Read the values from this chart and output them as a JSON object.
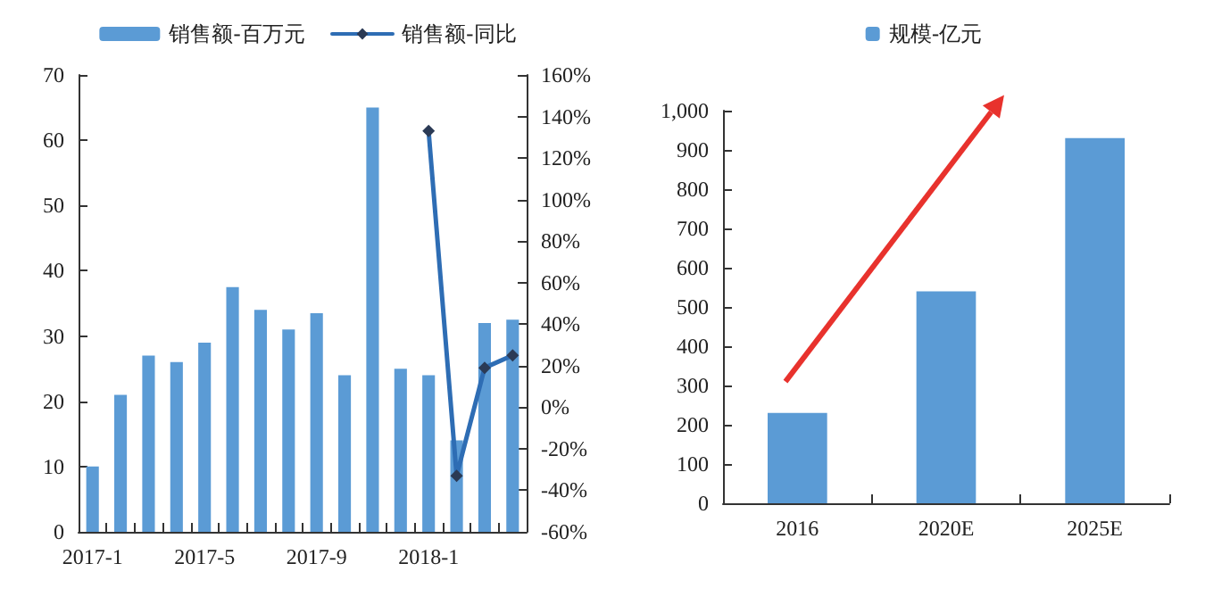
{
  "chart_data": [
    {
      "type": "bar",
      "categories": [
        "2017-1",
        null,
        null,
        null,
        "2017-5",
        null,
        null,
        null,
        "2017-9",
        null,
        null,
        null,
        "2018-1",
        null,
        null,
        null
      ],
      "series": [
        {
          "name": "销售额-百万元",
          "color": "#5b9bd5",
          "values": [
            10,
            21,
            27,
            26,
            29,
            37.5,
            34,
            31,
            33.5,
            24,
            65,
            25,
            24,
            14,
            32,
            32.5
          ]
        },
        {
          "name": "销售额-同比",
          "type": "line",
          "axis": "y2",
          "color": "#2e6db4",
          "values": [
            null,
            null,
            null,
            null,
            null,
            null,
            null,
            null,
            null,
            null,
            null,
            null,
            133,
            -33,
            19,
            25
          ]
        }
      ],
      "marker": "diamond",
      "legend": "top",
      "ylim": [
        0,
        70
      ],
      "yticks": [
        0,
        10,
        20,
        30,
        40,
        50,
        60,
        70
      ],
      "y2lim": [
        -60,
        160
      ],
      "y2ticks": [
        {
          "value": -60,
          "label": "-60%"
        },
        {
          "value": -40,
          "label": "-40%"
        },
        {
          "value": -20,
          "label": "-20%"
        },
        {
          "value": 0,
          "label": "0%"
        },
        {
          "value": 20,
          "label": "20%"
        },
        {
          "value": 40,
          "label": "40%"
        },
        {
          "value": 60,
          "label": "60%"
        },
        {
          "value": 80,
          "label": "80%"
        },
        {
          "value": 100,
          "label": "100%"
        },
        {
          "value": 120,
          "label": "120%"
        },
        {
          "value": 140,
          "label": "140%"
        },
        {
          "value": 160,
          "label": "160%"
        }
      ]
    },
    {
      "type": "bar",
      "categories": [
        "2016",
        "2020E",
        "2025E"
      ],
      "series": [
        {
          "name": "规模-亿元",
          "color": "#5b9bd5",
          "values": [
            230,
            540,
            930
          ]
        }
      ],
      "legend": "top",
      "ylim": [
        0,
        1000
      ],
      "yticks": [
        0,
        100,
        200,
        300,
        400,
        500,
        600,
        700,
        800,
        900,
        {
          "value": 1000,
          "label": "1,000"
        }
      ]
    }
  ]
}
